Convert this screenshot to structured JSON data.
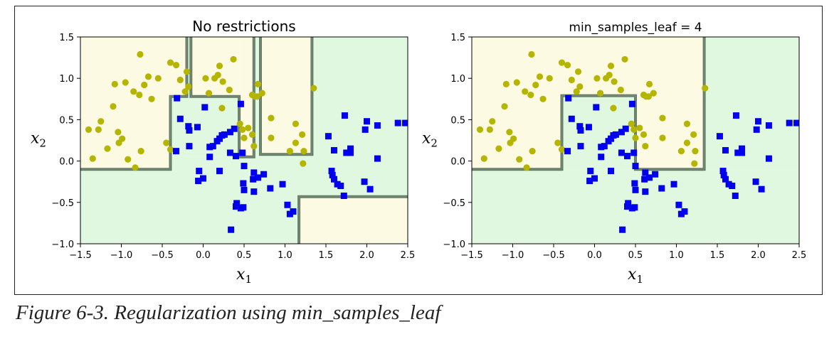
{
  "caption": "Figure 6-3. Regularization using min_samples_leaf",
  "chart_data": [
    {
      "type": "scatter",
      "title": "No restrictions",
      "xlabel": "x1",
      "ylabel": "x2",
      "xlim": [
        -1.5,
        2.5
      ],
      "ylim": [
        -1.0,
        1.5
      ],
      "xticks": [
        "−1.5",
        "−1.0",
        "−0.5",
        "0.0",
        "0.5",
        "1.0",
        "1.5",
        "2.0",
        "2.5"
      ],
      "yticks": [
        "−1.0",
        "−0.5",
        "0.0",
        "0.5",
        "1.0",
        "1.5"
      ],
      "grid": false,
      "colors": {
        "class0_region": "#fdfae3",
        "class1_region": "#dff8df",
        "class0_marker": "#b5b500",
        "class1_marker": "#0000ee",
        "boundary": "#4b6450"
      },
      "regions": [
        {
          "class": 0,
          "x": [
            -1.5,
            -0.4
          ],
          "y": [
            -0.1,
            1.5
          ]
        },
        {
          "class": 0,
          "x": [
            -0.4,
            -0.2
          ],
          "y": [
            0.78,
            1.5
          ]
        },
        {
          "class": 0,
          "x": [
            -0.15,
            0.44
          ],
          "y": [
            0.78,
            1.5
          ]
        },
        {
          "class": 0,
          "x": [
            -0.15,
            -0.12
          ],
          "y": [
            0.9,
            1.5
          ]
        },
        {
          "class": 0,
          "x": [
            0.44,
            0.62
          ],
          "y": [
            0.05,
            1.5
          ]
        },
        {
          "class": 0,
          "x": [
            0.7,
            1.33
          ],
          "y": [
            0.08,
            1.5
          ]
        },
        {
          "class": 0,
          "x": [
            1.17,
            2.5
          ],
          "y": [
            -1.0,
            -0.43
          ]
        },
        {
          "class": 1,
          "x": [
            -1.5,
            -0.4
          ],
          "y": [
            -1.0,
            -0.1
          ]
        },
        {
          "class": 1,
          "x": [
            -0.4,
            1.17
          ],
          "y": [
            -1.0,
            0.05
          ]
        },
        {
          "class": 1,
          "x": [
            -0.4,
            0.44
          ],
          "y": [
            0.05,
            0.78
          ]
        },
        {
          "class": 1,
          "x": [
            0.62,
            0.7
          ],
          "y": [
            0.05,
            1.5
          ]
        },
        {
          "class": 1,
          "x": [
            1.33,
            2.5
          ],
          "y": [
            -0.43,
            1.5
          ]
        },
        {
          "class": 1,
          "x": [
            1.17,
            1.33
          ],
          "y": [
            -0.43,
            0.08
          ]
        },
        {
          "class": 1,
          "x": [
            -0.2,
            -0.15
          ],
          "y": [
            0.78,
            1.5
          ]
        },
        {
          "class": 1,
          "x": [
            0.62,
            1.33
          ],
          "y": [
            0.05,
            0.08
          ]
        }
      ],
      "boundaries": [
        [
          [
            -1.5,
            -0.1
          ],
          [
            -0.4,
            -0.1
          ],
          [
            -0.4,
            0.78
          ],
          [
            -0.2,
            0.78
          ],
          [
            -0.2,
            1.5
          ]
        ],
        [
          [
            -0.15,
            1.5
          ],
          [
            -0.15,
            0.78
          ],
          [
            0.44,
            0.78
          ],
          [
            0.44,
            0.05
          ],
          [
            0.62,
            0.05
          ],
          [
            0.62,
            1.5
          ]
        ],
        [
          [
            0.7,
            1.5
          ],
          [
            0.7,
            0.08
          ],
          [
            1.33,
            0.08
          ],
          [
            1.33,
            1.5
          ]
        ],
        [
          [
            1.17,
            -1.0
          ],
          [
            1.17,
            -0.43
          ],
          [
            2.5,
            -0.43
          ]
        ]
      ],
      "class0_points": [
        [
          -1.4,
          0.38
        ],
        [
          -1.35,
          0.03
        ],
        [
          -1.28,
          0.38
        ],
        [
          -1.25,
          0.48
        ],
        [
          -1.17,
          0.15
        ],
        [
          -1.1,
          0.66
        ],
        [
          -1.08,
          0.93
        ],
        [
          -1.04,
          0.35
        ],
        [
          -1.03,
          0.22
        ],
        [
          -0.99,
          0.27
        ],
        [
          -0.95,
          0.95
        ],
        [
          -0.92,
          0.02
        ],
        [
          -0.85,
          0.84
        ],
        [
          -0.83,
          -0.08
        ],
        [
          -0.78,
          0.8
        ],
        [
          -0.77,
          1.29
        ],
        [
          -0.76,
          0.12
        ],
        [
          -0.72,
          0.92
        ],
        [
          -0.67,
          1.02
        ],
        [
          -0.63,
          0.75
        ],
        [
          -0.55,
          1.0
        ],
        [
          -0.45,
          0.22
        ],
        [
          -0.4,
          0.14
        ],
        [
          -0.4,
          1.19
        ],
        [
          -0.33,
          1.16
        ],
        [
          -0.28,
          0.98
        ],
        [
          -0.22,
          0.84
        ],
        [
          -0.2,
          1.08
        ],
        [
          -0.18,
          0.9
        ],
        [
          0.03,
          1.0
        ],
        [
          0.07,
          0.82
        ],
        [
          0.14,
          1.0
        ],
        [
          0.18,
          1.04
        ],
        [
          0.24,
          0.96
        ],
        [
          0.23,
          0.64
        ],
        [
          0.2,
          1.15
        ],
        [
          0.32,
          0.86
        ],
        [
          0.37,
          1.23
        ],
        [
          0.45,
          0.45
        ],
        [
          0.48,
          0.38
        ],
        [
          0.5,
          0.28
        ],
        [
          0.55,
          0.4
        ],
        [
          0.6,
          0.8
        ],
        [
          0.63,
          0.78
        ],
        [
          0.66,
          0.78
        ],
        [
          0.67,
          0.93
        ],
        [
          0.6,
          0.32
        ],
        [
          0.62,
          0.18
        ],
        [
          0.72,
          0.82
        ],
        [
          0.83,
          0.52
        ],
        [
          0.83,
          0.28
        ],
        [
          1.06,
          0.12
        ],
        [
          1.13,
          0.22
        ],
        [
          1.13,
          0.45
        ],
        [
          1.22,
          -0.03
        ],
        [
          1.35,
          0.88
        ],
        [
          1.21,
          0.32
        ],
        [
          1.23,
          0.12
        ]
      ],
      "class1_points": [
        [
          -0.32,
          0.76
        ],
        [
          -0.28,
          0.51
        ],
        [
          -0.18,
          0.42
        ],
        [
          -0.17,
          0.37
        ],
        [
          -0.07,
          0.41
        ],
        [
          0.02,
          0.65
        ],
        [
          0.08,
          0.17
        ],
        [
          0.08,
          0.05
        ],
        [
          0.12,
          0.18
        ],
        [
          0.17,
          0.24
        ],
        [
          0.2,
          0.27
        ],
        [
          0.23,
          0.31
        ],
        [
          0.26,
          0.32
        ],
        [
          0.33,
          0.35
        ],
        [
          0.33,
          0.1
        ],
        [
          0.38,
          0.39
        ],
        [
          0.4,
          0.06
        ],
        [
          0.46,
          0.69
        ],
        [
          0.48,
          0.1
        ],
        [
          0.5,
          -0.06
        ],
        [
          0.49,
          -0.27
        ],
        [
          0.5,
          -0.35
        ],
        [
          0.34,
          -0.83
        ],
        [
          0.4,
          -0.55
        ],
        [
          0.41,
          -0.51
        ],
        [
          0.46,
          -0.57
        ],
        [
          0.49,
          -0.56
        ],
        [
          0.62,
          -0.37
        ],
        [
          0.62,
          -0.14
        ],
        [
          0.61,
          -0.22
        ],
        [
          0.67,
          -0.2
        ],
        [
          0.74,
          -0.16
        ],
        [
          0.82,
          -0.33
        ],
        [
          0.97,
          -0.28
        ],
        [
          1.03,
          -0.53
        ],
        [
          1.06,
          -0.64
        ],
        [
          1.1,
          -0.61
        ],
        [
          1.57,
          -0.12
        ],
        [
          1.58,
          -0.17
        ],
        [
          1.6,
          -0.22
        ],
        [
          1.64,
          -0.28
        ],
        [
          1.68,
          -0.3
        ],
        [
          1.53,
          0.3
        ],
        [
          1.6,
          0.13
        ],
        [
          1.72,
          -0.42
        ],
        [
          1.73,
          0.55
        ],
        [
          1.75,
          0.1
        ],
        [
          1.8,
          0.15
        ],
        [
          1.8,
          0.1
        ],
        [
          2.04,
          -0.34
        ],
        [
          1.97,
          -0.25
        ],
        [
          2.0,
          0.48
        ],
        [
          1.98,
          0.38
        ],
        [
          2.13,
          0.43
        ],
        [
          2.13,
          0.03
        ],
        [
          2.38,
          0.46
        ],
        [
          2.47,
          0.46
        ],
        [
          -0.33,
          0.12
        ],
        [
          -0.17,
          0.18
        ],
        [
          -0.05,
          -0.12
        ],
        [
          0.0,
          -0.21
        ],
        [
          -0.06,
          -0.24
        ],
        [
          0.2,
          -0.12
        ]
      ]
    },
    {
      "type": "scatter",
      "title": "min_samples_leaf = 4",
      "xlabel": "x1",
      "ylabel": "x2",
      "xlim": [
        -1.5,
        2.5
      ],
      "ylim": [
        -1.0,
        1.5
      ],
      "xticks": [
        "−1.5",
        "−1.0",
        "−0.5",
        "0.0",
        "0.5",
        "1.0",
        "1.5",
        "2.0",
        "2.5"
      ],
      "yticks": [
        "−1.0",
        "−0.5",
        "0.0",
        "0.5",
        "1.0",
        "1.5"
      ],
      "grid": false,
      "colors": {
        "class0_region": "#fdfae3",
        "class1_region": "#dff8df",
        "class0_marker": "#b5b500",
        "class1_marker": "#0000ee",
        "boundary": "#4b6450"
      },
      "regions": [
        {
          "class": 0,
          "x": [
            -1.5,
            -0.4
          ],
          "y": [
            -0.1,
            1.5
          ]
        },
        {
          "class": 0,
          "x": [
            -0.4,
            0.5
          ],
          "y": [
            0.79,
            1.5
          ]
        },
        {
          "class": 0,
          "x": [
            0.5,
            1.34
          ],
          "y": [
            -0.1,
            1.5
          ]
        },
        {
          "class": 1,
          "x": [
            -1.5,
            2.5
          ],
          "y": [
            -1.0,
            -0.1
          ]
        },
        {
          "class": 1,
          "x": [
            -0.4,
            0.5
          ],
          "y": [
            -0.1,
            0.79
          ]
        },
        {
          "class": 1,
          "x": [
            1.34,
            2.5
          ],
          "y": [
            -0.1,
            1.5
          ]
        }
      ],
      "boundaries": [
        [
          [
            -1.5,
            -0.1
          ],
          [
            -0.4,
            -0.1
          ],
          [
            -0.4,
            0.79
          ],
          [
            0.5,
            0.79
          ],
          [
            0.5,
            -0.1
          ],
          [
            1.34,
            -0.1
          ],
          [
            1.34,
            1.5
          ]
        ]
      ],
      "class0_points": [
        [
          -1.4,
          0.38
        ],
        [
          -1.35,
          0.03
        ],
        [
          -1.28,
          0.38
        ],
        [
          -1.25,
          0.48
        ],
        [
          -1.17,
          0.15
        ],
        [
          -1.1,
          0.66
        ],
        [
          -1.08,
          0.93
        ],
        [
          -1.04,
          0.35
        ],
        [
          -1.03,
          0.22
        ],
        [
          -0.99,
          0.27
        ],
        [
          -0.95,
          0.95
        ],
        [
          -0.92,
          0.02
        ],
        [
          -0.85,
          0.84
        ],
        [
          -0.83,
          -0.08
        ],
        [
          -0.78,
          0.8
        ],
        [
          -0.77,
          1.29
        ],
        [
          -0.76,
          0.12
        ],
        [
          -0.72,
          0.92
        ],
        [
          -0.67,
          1.02
        ],
        [
          -0.63,
          0.75
        ],
        [
          -0.55,
          1.0
        ],
        [
          -0.45,
          0.22
        ],
        [
          -0.4,
          0.14
        ],
        [
          -0.4,
          1.19
        ],
        [
          -0.33,
          1.16
        ],
        [
          -0.28,
          0.98
        ],
        [
          -0.22,
          0.84
        ],
        [
          -0.2,
          1.08
        ],
        [
          -0.18,
          0.9
        ],
        [
          0.03,
          1.0
        ],
        [
          0.07,
          0.82
        ],
        [
          0.14,
          1.0
        ],
        [
          0.18,
          1.04
        ],
        [
          0.24,
          0.96
        ],
        [
          0.23,
          0.64
        ],
        [
          0.2,
          1.15
        ],
        [
          0.32,
          0.86
        ],
        [
          0.37,
          1.23
        ],
        [
          0.45,
          0.45
        ],
        [
          0.48,
          0.38
        ],
        [
          0.5,
          0.28
        ],
        [
          0.55,
          0.4
        ],
        [
          0.6,
          0.8
        ],
        [
          0.63,
          0.78
        ],
        [
          0.66,
          0.78
        ],
        [
          0.67,
          0.93
        ],
        [
          0.6,
          0.32
        ],
        [
          0.62,
          0.18
        ],
        [
          0.72,
          0.82
        ],
        [
          0.83,
          0.52
        ],
        [
          0.83,
          0.28
        ],
        [
          1.06,
          0.12
        ],
        [
          1.13,
          0.22
        ],
        [
          1.13,
          0.45
        ],
        [
          1.22,
          -0.03
        ],
        [
          1.35,
          0.88
        ],
        [
          1.21,
          0.32
        ],
        [
          1.23,
          0.12
        ]
      ],
      "class1_points": [
        [
          -0.32,
          0.76
        ],
        [
          -0.28,
          0.51
        ],
        [
          -0.18,
          0.42
        ],
        [
          -0.17,
          0.37
        ],
        [
          -0.07,
          0.41
        ],
        [
          0.02,
          0.65
        ],
        [
          0.08,
          0.17
        ],
        [
          0.08,
          0.05
        ],
        [
          0.12,
          0.18
        ],
        [
          0.17,
          0.24
        ],
        [
          0.2,
          0.27
        ],
        [
          0.23,
          0.31
        ],
        [
          0.26,
          0.32
        ],
        [
          0.33,
          0.35
        ],
        [
          0.33,
          0.1
        ],
        [
          0.38,
          0.39
        ],
        [
          0.4,
          0.06
        ],
        [
          0.46,
          0.69
        ],
        [
          0.48,
          0.1
        ],
        [
          0.5,
          -0.06
        ],
        [
          0.49,
          -0.27
        ],
        [
          0.5,
          -0.35
        ],
        [
          0.34,
          -0.83
        ],
        [
          0.4,
          -0.55
        ],
        [
          0.41,
          -0.51
        ],
        [
          0.46,
          -0.57
        ],
        [
          0.49,
          -0.56
        ],
        [
          0.62,
          -0.37
        ],
        [
          0.62,
          -0.14
        ],
        [
          0.61,
          -0.22
        ],
        [
          0.67,
          -0.2
        ],
        [
          0.74,
          -0.16
        ],
        [
          0.82,
          -0.33
        ],
        [
          0.97,
          -0.28
        ],
        [
          1.03,
          -0.53
        ],
        [
          1.06,
          -0.64
        ],
        [
          1.1,
          -0.61
        ],
        [
          1.57,
          -0.12
        ],
        [
          1.58,
          -0.17
        ],
        [
          1.6,
          -0.22
        ],
        [
          1.64,
          -0.28
        ],
        [
          1.68,
          -0.3
        ],
        [
          1.53,
          0.3
        ],
        [
          1.6,
          0.13
        ],
        [
          1.72,
          -0.42
        ],
        [
          1.73,
          0.55
        ],
        [
          1.75,
          0.1
        ],
        [
          1.8,
          0.15
        ],
        [
          1.8,
          0.1
        ],
        [
          2.04,
          -0.34
        ],
        [
          1.97,
          -0.25
        ],
        [
          2.0,
          0.48
        ],
        [
          1.98,
          0.38
        ],
        [
          2.13,
          0.43
        ],
        [
          2.13,
          0.03
        ],
        [
          2.38,
          0.46
        ],
        [
          2.47,
          0.46
        ],
        [
          -0.33,
          0.12
        ],
        [
          -0.17,
          0.18
        ],
        [
          -0.05,
          -0.12
        ],
        [
          0.0,
          -0.21
        ],
        [
          -0.06,
          -0.24
        ],
        [
          0.2,
          -0.12
        ]
      ]
    }
  ]
}
